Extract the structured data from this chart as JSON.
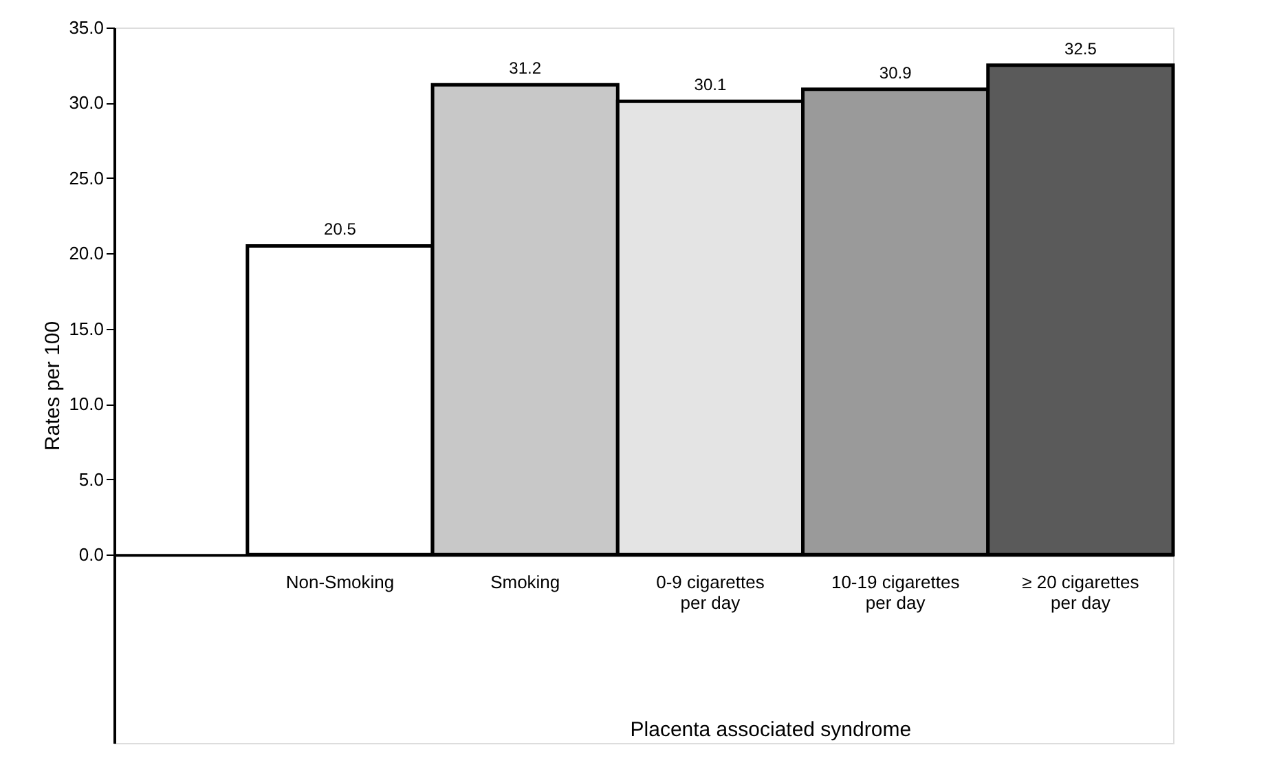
{
  "chart_data": {
    "type": "bar",
    "xlabel": "Placenta associated syndrome",
    "ylabel": "Rates per 100",
    "categories": [
      "Non-Smoking",
      "Smoking",
      "0-9 cigarettes per day",
      "10-19 cigarettes per day",
      "≥ 20 cigarettes per day"
    ],
    "values": [
      20.5,
      31.2,
      30.1,
      30.9,
      32.5
    ],
    "colors": [
      "#ffffff",
      "#c8c8c8",
      "#e4e4e4",
      "#9a9a9a",
      "#5a5a5a"
    ],
    "data_labels": true,
    "ylim": [
      -12.5,
      35
    ],
    "yticks": [
      {
        "value": 0,
        "label": "0.0"
      },
      {
        "value": 5,
        "label": "5.0"
      },
      {
        "value": 10,
        "label": "10.0"
      },
      {
        "value": 15,
        "label": "15.0"
      },
      {
        "value": 20,
        "label": "20.0"
      },
      {
        "value": 25,
        "label": "25.0"
      },
      {
        "value": 30,
        "label": "30.0"
      },
      {
        "value": 35,
        "label": "35.0"
      }
    ],
    "grid": false
  }
}
